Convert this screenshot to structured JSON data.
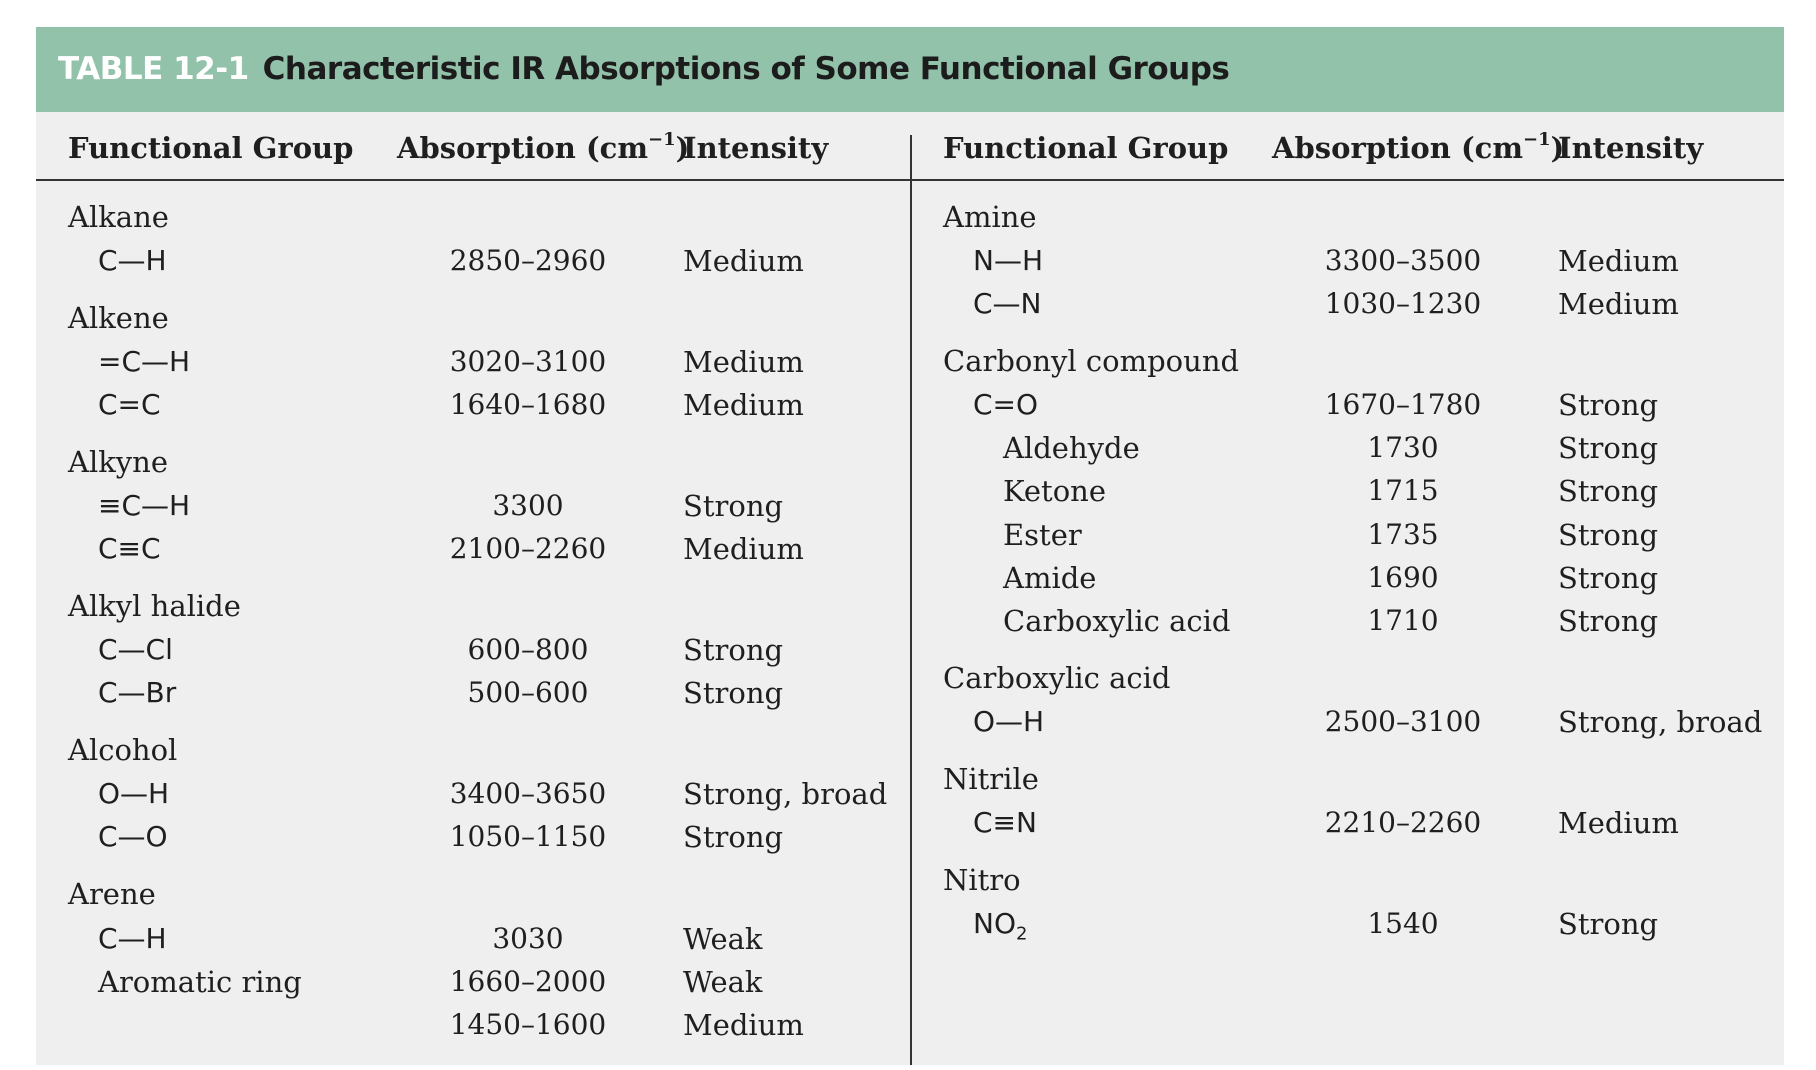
{
  "title": {
    "label": "TABLE 12-1",
    "caption": "Characteristic IR Absorptions of Some Functional Groups"
  },
  "headers": {
    "group": "Functional Group",
    "absorption": "Absorption (cm",
    "absorption_sup": "−1",
    "absorption_close": ")",
    "intensity": "Intensity"
  },
  "colors": {
    "banner": "#93c2ab",
    "background": "#efefef",
    "label_text": "#ffffff"
  },
  "left": {
    "groups": [
      {
        "name": "Alkane",
        "rows": [
          {
            "bond": "C—H",
            "absorption": "2850–2960",
            "intensity": "Medium"
          }
        ]
      },
      {
        "name": "Alkene",
        "rows": [
          {
            "bond": "=C—H",
            "absorption": "3020–3100",
            "intensity": "Medium"
          },
          {
            "bond": "C=C",
            "absorption": "1640–1680",
            "intensity": "Medium"
          }
        ]
      },
      {
        "name": "Alkyne",
        "rows": [
          {
            "bond": "≡C—H",
            "absorption": "3300",
            "intensity": "Strong"
          },
          {
            "bond": "C≡C",
            "absorption": "2100–2260",
            "intensity": "Medium"
          }
        ]
      },
      {
        "name": "Alkyl halide",
        "rows": [
          {
            "bond": "C—Cl",
            "absorption": "600–800",
            "intensity": "Strong"
          },
          {
            "bond": "C—Br",
            "absorption": "500–600",
            "intensity": "Strong"
          }
        ]
      },
      {
        "name": "Alcohol",
        "rows": [
          {
            "bond": "O—H",
            "absorption": "3400–3650",
            "intensity": "Strong, broad"
          },
          {
            "bond": "C—O",
            "absorption": "1050–1150",
            "intensity": "Strong"
          }
        ]
      },
      {
        "name": "Arene",
        "rows": [
          {
            "bond": "C—H",
            "absorption": "3030",
            "intensity": "Weak"
          },
          {
            "label": "Aromatic ring",
            "absorption": "1660–2000",
            "intensity": "Weak"
          },
          {
            "absorption": "1450–1600",
            "intensity": "Medium"
          }
        ]
      }
    ]
  },
  "right": {
    "groups": [
      {
        "name": "Amine",
        "rows": [
          {
            "bond": "N—H",
            "absorption": "3300–3500",
            "intensity": "Medium"
          },
          {
            "bond": "C—N",
            "absorption": "1030–1230",
            "intensity": "Medium"
          }
        ]
      },
      {
        "name": "Carbonyl compound",
        "rows": [
          {
            "bond": "C=O",
            "absorption": "1670–1780",
            "intensity": "Strong"
          },
          {
            "sublabel": "Aldehyde",
            "absorption": "1730",
            "intensity": "Strong"
          },
          {
            "sublabel": "Ketone",
            "absorption": "1715",
            "intensity": "Strong"
          },
          {
            "sublabel": "Ester",
            "absorption": "1735",
            "intensity": "Strong"
          },
          {
            "sublabel": "Amide",
            "absorption": "1690",
            "intensity": "Strong"
          },
          {
            "sublabel": "Carboxylic acid",
            "absorption": "1710",
            "intensity": "Strong"
          }
        ]
      },
      {
        "name": "Carboxylic acid",
        "rows": [
          {
            "bond": "O—H",
            "absorption": "2500–3100",
            "intensity": "Strong, broad"
          }
        ]
      },
      {
        "name": "Nitrile",
        "rows": [
          {
            "bond": "C≡N",
            "absorption": "2210–2260",
            "intensity": "Medium"
          }
        ]
      },
      {
        "name": "Nitro",
        "rows": [
          {
            "bond": "NO",
            "bond_sub": "2",
            "absorption": "1540",
            "intensity": "Strong"
          }
        ]
      }
    ]
  }
}
